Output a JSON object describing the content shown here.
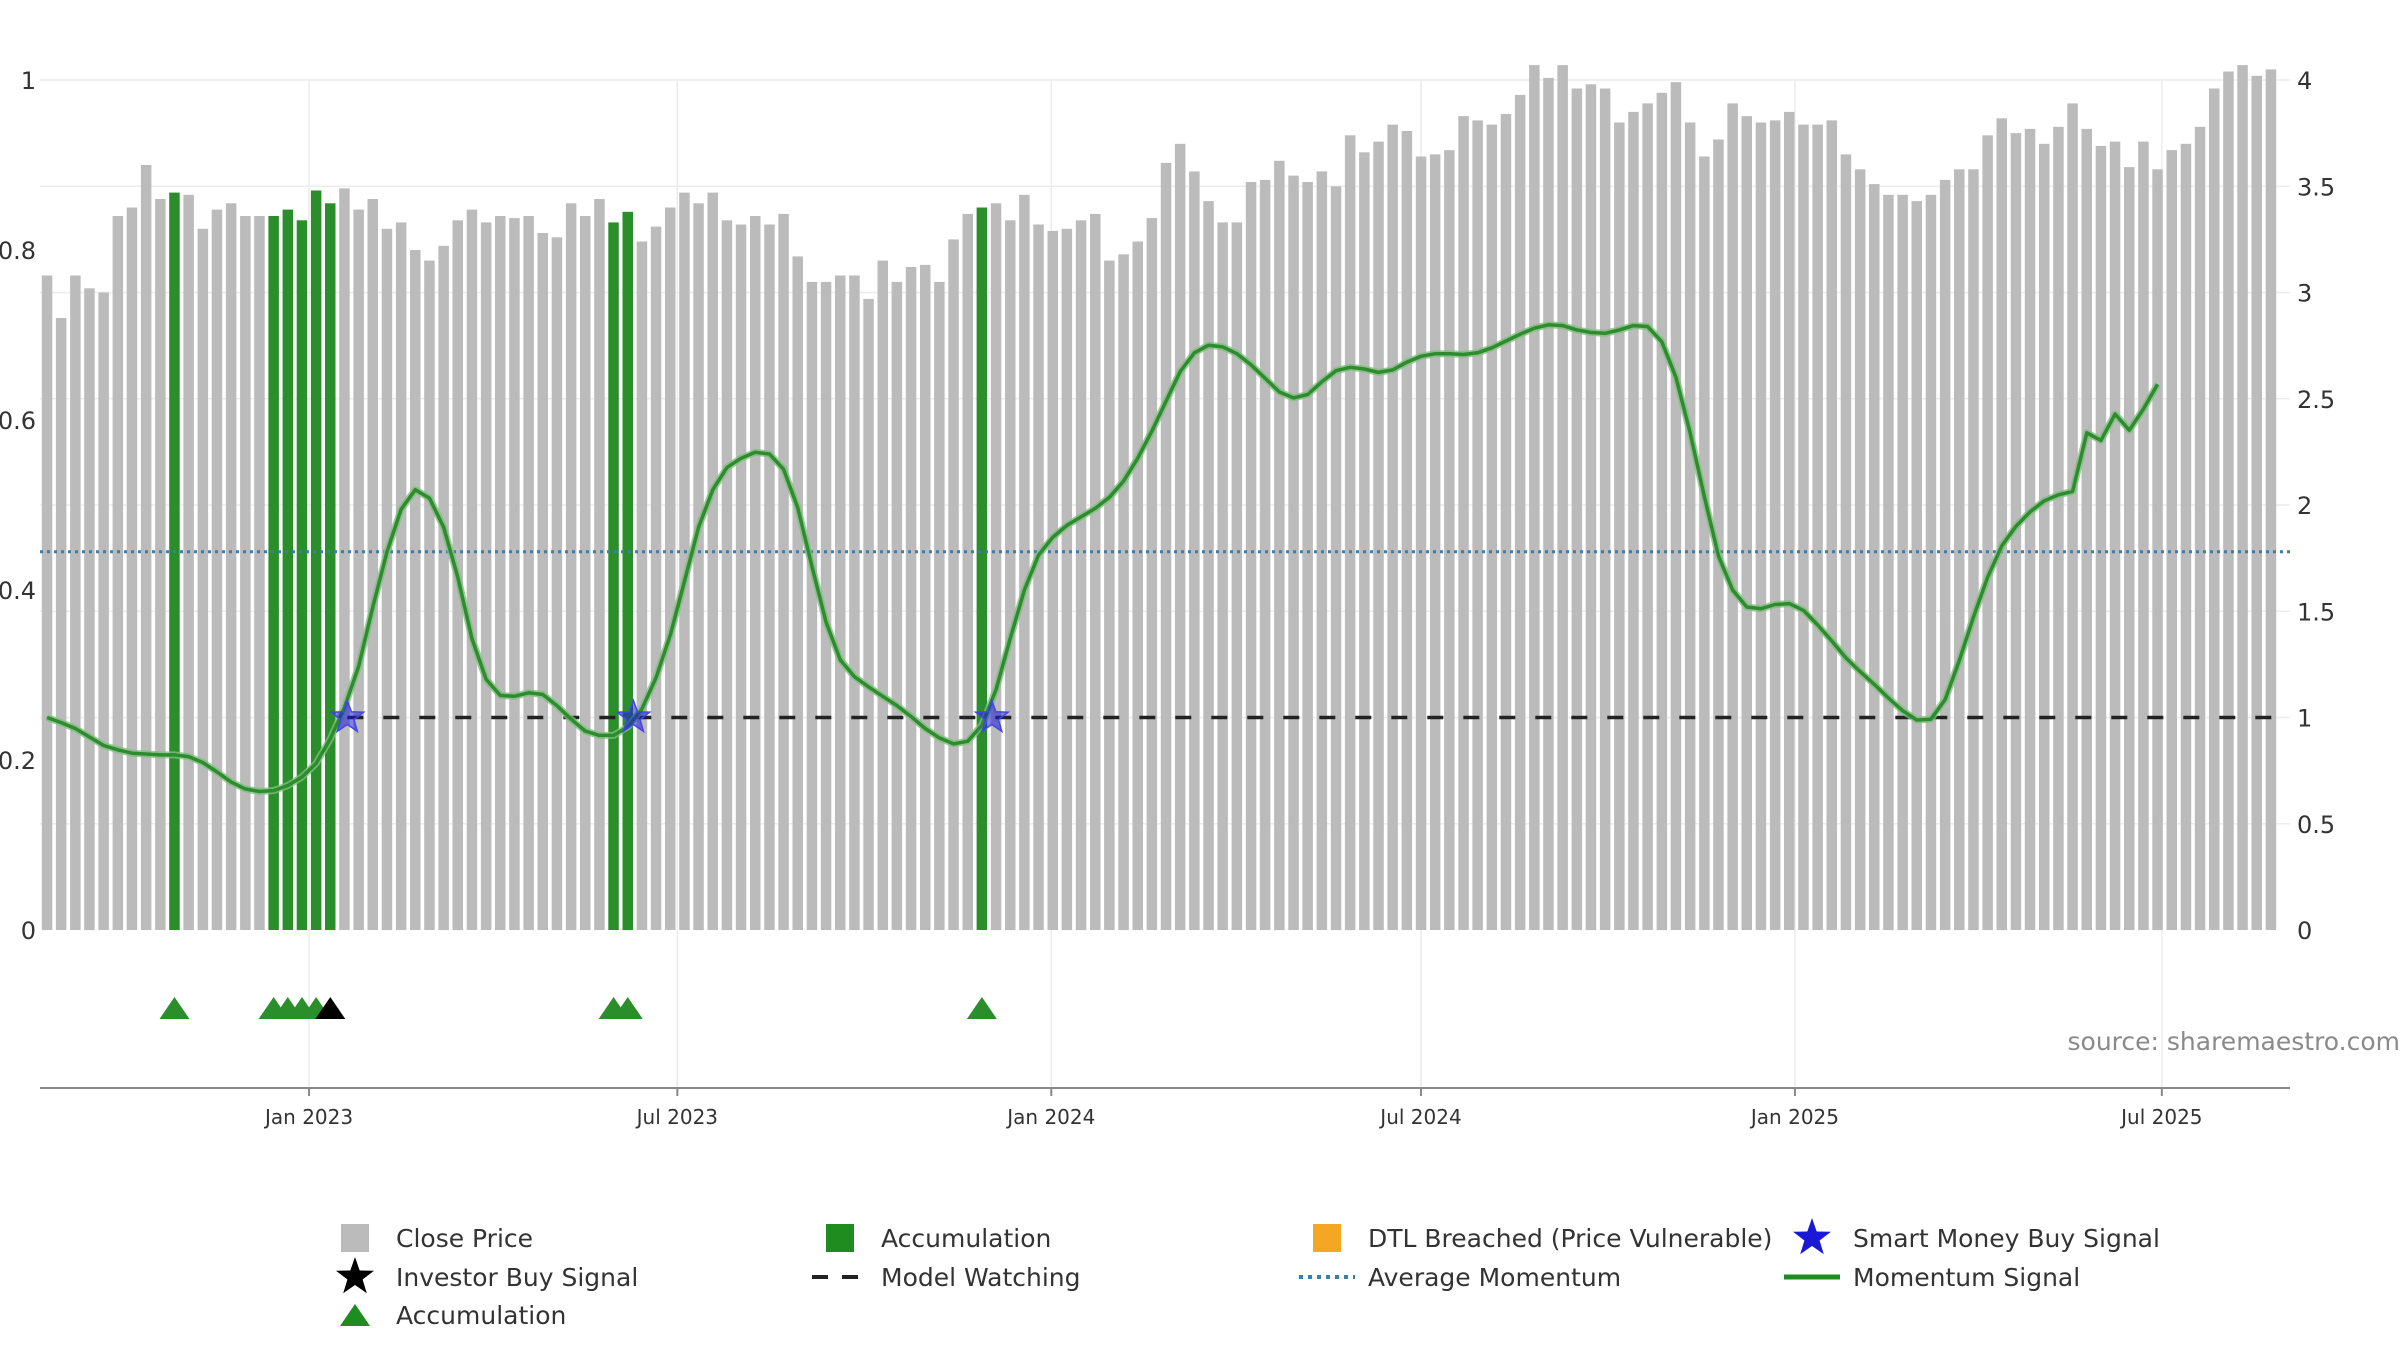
{
  "source": "source: sharemaestro.com",
  "colors": {
    "price": "#bbbbbb",
    "accumulation": "#2a8f2a",
    "dtl": "#f5a623",
    "smart_money": "#1a1ad6",
    "investor": "#000000",
    "watching": "#222222",
    "average": "#3b7dab",
    "momentum": "#2e8b2e"
  },
  "chart_data": {
    "type": "bar",
    "title": "",
    "left_axis": {
      "ylim": [
        0,
        1
      ],
      "ticks": [
        0,
        0.2,
        0.4,
        0.6,
        0.8,
        1
      ],
      "tick_labels": [
        "0",
        "0.2",
        "0.4",
        "0.6",
        "0.8",
        "1"
      ]
    },
    "right_axis": {
      "ylim": [
        0,
        4.0
      ],
      "ticks": [
        0,
        0.5,
        1,
        1.5,
        2,
        2.5,
        3,
        3.5,
        4
      ],
      "tick_labels": [
        "0",
        "0.5",
        "1",
        "1.5",
        "2",
        "2.5",
        "3",
        "3.5",
        "4"
      ]
    },
    "x_axis": {
      "ticks": [
        {
          "label": "Jan 2023",
          "week": 18.5
        },
        {
          "label": "Jul 2023",
          "week": 44.5
        },
        {
          "label": "Jan 2024",
          "week": 70.9
        },
        {
          "label": "Jul 2024",
          "week": 97
        },
        {
          "label": "Jan 2025",
          "week": 123.4
        },
        {
          "label": "Jul 2025",
          "week": 149.3
        }
      ]
    },
    "close_price": [
      3.08,
      2.88,
      3.08,
      3.02,
      3.0,
      3.36,
      3.4,
      3.6,
      3.44,
      3.47,
      3.46,
      3.3,
      3.39,
      3.42,
      3.36,
      3.36,
      3.36,
      3.39,
      3.34,
      3.48,
      3.42,
      3.49,
      3.39,
      3.44,
      3.3,
      3.33,
      3.2,
      3.15,
      3.22,
      3.34,
      3.39,
      3.33,
      3.36,
      3.35,
      3.36,
      3.28,
      3.26,
      3.42,
      3.36,
      3.44,
      3.33,
      3.38,
      3.24,
      3.31,
      3.4,
      3.47,
      3.42,
      3.47,
      3.34,
      3.32,
      3.36,
      3.32,
      3.37,
      3.17,
      3.05,
      3.05,
      3.08,
      3.08,
      2.97,
      3.15,
      3.05,
      3.12,
      3.13,
      3.05,
      3.25,
      3.37,
      3.4,
      3.42,
      3.34,
      3.46,
      3.32,
      3.29,
      3.3,
      3.34,
      3.37,
      3.15,
      3.18,
      3.24,
      3.35,
      3.61,
      3.7,
      3.57,
      3.43,
      3.33,
      3.33,
      3.52,
      3.53,
      3.62,
      3.55,
      3.52,
      3.57,
      3.5,
      3.74,
      3.66,
      3.71,
      3.79,
      3.76,
      3.64,
      3.65,
      3.67,
      3.83,
      3.81,
      3.79,
      3.84,
      3.93,
      4.07,
      4.01,
      4.07,
      3.96,
      3.98,
      3.96,
      3.8,
      3.85,
      3.89,
      3.94,
      3.99,
      3.8,
      3.64,
      3.72,
      3.89,
      3.83,
      3.8,
      3.81,
      3.85,
      3.79,
      3.79,
      3.81,
      3.65,
      3.58,
      3.51,
      3.46,
      3.46,
      3.43,
      3.46,
      3.53,
      3.58,
      3.58,
      3.74,
      3.82,
      3.75,
      3.77,
      3.7,
      3.78,
      3.89,
      3.77,
      3.69,
      3.71,
      3.59,
      3.71,
      3.58,
      3.67,
      3.7,
      3.78,
      3.96,
      4.04,
      4.07,
      4.02,
      4.05
    ],
    "accumulation_weeks": [
      9,
      16,
      17,
      18,
      19,
      20,
      40,
      41,
      66
    ],
    "accumulation_triangles": [
      9,
      16,
      17,
      18,
      19,
      40,
      41,
      66
    ],
    "investor_buy_signals": [
      20
    ],
    "smart_money_buy_signals": [
      21.2,
      41.4,
      66.7
    ],
    "model_watching": {
      "value": 0.25,
      "start_week": 21.2,
      "end_week": 157.5
    },
    "average_momentum": 0.445,
    "momentum_signal": [
      [
        0,
        0.25
      ],
      [
        1,
        0.244
      ],
      [
        2,
        0.237
      ],
      [
        3,
        0.227
      ],
      [
        4,
        0.217
      ],
      [
        5,
        0.212
      ],
      [
        6,
        0.208
      ],
      [
        7,
        0.207
      ],
      [
        8,
        0.206
      ],
      [
        9,
        0.206
      ],
      [
        10,
        0.204
      ],
      [
        11,
        0.197
      ],
      [
        12,
        0.186
      ],
      [
        13,
        0.174
      ],
      [
        14,
        0.166
      ],
      [
        15,
        0.163
      ],
      [
        16,
        0.164
      ],
      [
        17,
        0.17
      ],
      [
        18,
        0.18
      ],
      [
        19,
        0.196
      ],
      [
        20,
        0.225
      ],
      [
        21,
        0.262
      ],
      [
        22,
        0.31
      ],
      [
        23,
        0.38
      ],
      [
        24,
        0.445
      ],
      [
        25,
        0.495
      ],
      [
        26,
        0.518
      ],
      [
        27,
        0.508
      ],
      [
        28,
        0.474
      ],
      [
        29,
        0.415
      ],
      [
        30,
        0.343
      ],
      [
        31,
        0.295
      ],
      [
        32,
        0.276
      ],
      [
        33,
        0.275
      ],
      [
        34,
        0.279
      ],
      [
        35,
        0.277
      ],
      [
        36,
        0.264
      ],
      [
        37,
        0.248
      ],
      [
        38,
        0.234
      ],
      [
        39,
        0.229
      ],
      [
        40,
        0.229
      ],
      [
        41,
        0.239
      ],
      [
        42,
        0.26
      ],
      [
        43,
        0.297
      ],
      [
        44,
        0.347
      ],
      [
        45,
        0.41
      ],
      [
        46,
        0.474
      ],
      [
        47,
        0.518
      ],
      [
        48,
        0.544
      ],
      [
        49,
        0.555
      ],
      [
        50,
        0.562
      ],
      [
        51,
        0.56
      ],
      [
        52,
        0.542
      ],
      [
        53,
        0.497
      ],
      [
        54,
        0.428
      ],
      [
        55,
        0.362
      ],
      [
        56,
        0.318
      ],
      [
        57,
        0.298
      ],
      [
        58,
        0.286
      ],
      [
        59,
        0.275
      ],
      [
        60,
        0.264
      ],
      [
        61,
        0.251
      ],
      [
        62,
        0.237
      ],
      [
        63,
        0.226
      ],
      [
        64,
        0.219
      ],
      [
        65,
        0.222
      ],
      [
        66,
        0.241
      ],
      [
        67,
        0.283
      ],
      [
        68,
        0.343
      ],
      [
        69,
        0.4
      ],
      [
        70,
        0.441
      ],
      [
        71,
        0.462
      ],
      [
        72,
        0.476
      ],
      [
        73,
        0.486
      ],
      [
        74,
        0.496
      ],
      [
        75,
        0.509
      ],
      [
        76,
        0.528
      ],
      [
        77,
        0.555
      ],
      [
        78,
        0.587
      ],
      [
        79,
        0.622
      ],
      [
        80,
        0.657
      ],
      [
        81,
        0.679
      ],
      [
        82,
        0.688
      ],
      [
        83,
        0.686
      ],
      [
        84,
        0.678
      ],
      [
        85,
        0.665
      ],
      [
        86,
        0.649
      ],
      [
        87,
        0.633
      ],
      [
        88,
        0.626
      ],
      [
        89,
        0.63
      ],
      [
        90,
        0.645
      ],
      [
        91,
        0.658
      ],
      [
        92,
        0.662
      ],
      [
        93,
        0.66
      ],
      [
        94,
        0.656
      ],
      [
        95,
        0.659
      ],
      [
        96,
        0.668
      ],
      [
        97,
        0.675
      ],
      [
        98,
        0.678
      ],
      [
        99,
        0.678
      ],
      [
        100,
        0.677
      ],
      [
        101,
        0.679
      ],
      [
        102,
        0.685
      ],
      [
        103,
        0.693
      ],
      [
        104,
        0.701
      ],
      [
        105,
        0.708
      ],
      [
        106,
        0.712
      ],
      [
        107,
        0.711
      ],
      [
        108,
        0.706
      ],
      [
        109,
        0.703
      ],
      [
        110,
        0.702
      ],
      [
        111,
        0.706
      ],
      [
        112,
        0.711
      ],
      [
        113,
        0.71
      ],
      [
        114,
        0.692
      ],
      [
        115,
        0.65
      ],
      [
        116,
        0.585
      ],
      [
        117,
        0.51
      ],
      [
        118,
        0.44
      ],
      [
        119,
        0.4
      ],
      [
        120,
        0.38
      ],
      [
        121,
        0.378
      ],
      [
        122,
        0.383
      ],
      [
        123,
        0.384
      ],
      [
        124,
        0.376
      ],
      [
        125,
        0.359
      ],
      [
        126,
        0.34
      ],
      [
        127,
        0.32
      ],
      [
        128,
        0.304
      ],
      [
        129,
        0.289
      ],
      [
        130,
        0.273
      ],
      [
        131,
        0.258
      ],
      [
        132,
        0.247
      ],
      [
        133,
        0.248
      ],
      [
        134,
        0.271
      ],
      [
        135,
        0.317
      ],
      [
        136,
        0.368
      ],
      [
        137,
        0.415
      ],
      [
        138,
        0.452
      ],
      [
        139,
        0.475
      ],
      [
        140,
        0.492
      ],
      [
        141,
        0.505
      ],
      [
        142,
        0.512
      ],
      [
        143,
        0.516
      ],
      [
        144,
        0.585
      ],
      [
        145,
        0.576
      ],
      [
        146,
        0.607
      ],
      [
        147,
        0.588
      ],
      [
        148,
        0.613
      ],
      [
        149,
        0.642
      ]
    ]
  },
  "legend": [
    {
      "label": "Close Price",
      "symbol": "square",
      "color": "#bbbbbb"
    },
    {
      "label": "Accumulation",
      "symbol": "square",
      "color": "#1e8c1e"
    },
    {
      "label": "DTL Breached (Price Vulnerable)",
      "symbol": "square",
      "color": "#f5a623"
    },
    {
      "label": "Smart Money Buy Signal",
      "symbol": "star",
      "color": "#1a1ad6"
    },
    {
      "label": "Investor Buy Signal",
      "symbol": "star",
      "color": "#000000"
    },
    {
      "label": "Model Watching",
      "symbol": "dash",
      "color": "#222222"
    },
    {
      "label": "Average Momentum",
      "symbol": "dot",
      "color": "#3b7dab"
    },
    {
      "label": "Momentum Signal",
      "symbol": "line",
      "color": "#1e8c1e"
    },
    {
      "label": "Accumulation",
      "symbol": "triangle",
      "color": "#1e8c1e"
    }
  ]
}
